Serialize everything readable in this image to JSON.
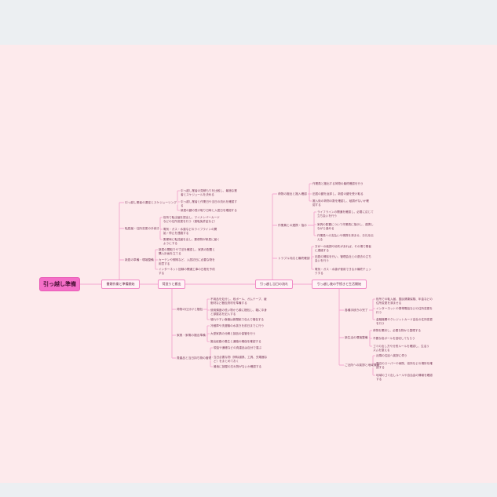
{
  "root": {
    "label": "引っ越し準備"
  },
  "colors": {
    "background": "#fdeaec",
    "root": "#f56fc8",
    "line": "#f3a6cf",
    "node_border": "#f08cc6"
  },
  "branches": [
    {
      "label": "書類作業と準備開始",
      "children": [
        {
          "label": "引っ越し業者の選定とスケジューリング",
          "leaves": [
            "引っ越し業者の見積もりを比較し、最適な業者とスケジュールを決める",
            "引っ越し業者と作業日や当日の流れを確認する",
            "新居の鍵の受け取り日時と入居日を確認する"
          ]
        },
        {
          "label": "転居届・住所変更の手続き",
          "leaves": [
            "役所で転出届を提出し、マイナンバーカードなどの住所変更を行う（運転免許証など）",
            "電気・ガス・水道などのライフラインの開始・停止を連絡する",
            "郵便局に転送届を出し、郵便物が新居に届くようにする"
          ]
        },
        {
          "label": "新居の準備・環境整備",
          "leaves": [
            "新居の間取りや寸法を確認し、家具の配置と購入計画を立てる",
            "カーテンや照明など、入居初日に必要な物を用意する",
            "インターネット回線の開通工事の日程を予約する"
          ]
        }
      ]
    },
    {
      "label": "荷造りと搬出",
      "children": [
        {
          "label": "荷物の仕分けと梱包",
          "leaves": [
            "不用品を処分し、段ボール、ガムテープ、緩衝材など梱包資材を準備する",
            "使用頻度の低い物から順に梱包し、箱に中身と部屋名を記入する",
            "壊れやすい食器は新聞紙で包んで梱包する"
          ]
        },
        {
          "label": "家具・家電の搬出準備",
          "leaves": [
            "冷蔵庫や洗濯機の水抜きを前日までに行う",
            "大型家具の分解と部品の保管を行う",
            "搬出経路の養生と通路の確保を確認する"
          ]
        },
        {
          "label": "貴重品と当日持ち物の管理",
          "leaves": [
            "現金や通帳などの貴重品は自分で運ぶ",
            "当日必要な物（掃除道具、工具、充電器など）をまとめておく",
            "最後に部屋の忘れ物がないか確認する"
          ]
        }
      ]
    },
    {
      "label": "引っ越し当日の流れ",
      "children": [
        {
          "label": "荷物の搬出と搬入確認",
          "leaves": [
            "作業員と搬出する荷物の最終確認を行う",
            "旧居の鍵を返却し、新居の鍵を受け取る",
            "搬入後の荷物の数を確認し、破損がないか確認する"
          ]
        },
        {
          "label": "作業員との連携・指示",
          "leaves": [
            "ライフラインの開通を確認し、必要に応じて立ち会いを行う",
            "家具の配置について作業員に指示し、連携しながら進める",
            "作業員への支払いや精算を済ませ、お礼を伝える"
          ]
        },
        {
          "label": "トラブル対応と最終確認",
          "leaves": [
            "万が一の破損や紛失があれば、その場で業者に連絡する",
            "旧居の掃除を行い、管理会社との退去の立ち会いを行う",
            "電気・ガス・水道が使用できるか最終チェックする"
          ]
        }
      ]
    },
    {
      "label": "引っ越し後の手続きと生活開始",
      "children": [
        {
          "label": "各種手続きの完了",
          "leaves": [
            "役所での転入届、国民健康保険、年金などの住所変更を済ませる",
            "インターネットや携帯電話などの住所変更を行う",
            "金融機関やクレジットカード会社の住所変更を行う"
          ]
        },
        {
          "label": "新生活の環境整備",
          "leaves": [
            "荷物を開封し、必要な物から整理する",
            "不要な段ボールを回収してもらう",
            "ゴミの出し方や分別ルールを確認し、生活リズムを整える"
          ]
        },
        {
          "label": "ご近所への挨拶と地域情報",
          "leaves": [
            "近隣の住民へ挨拶に伺う",
            "周辺のスーパーや病院、役所などの場所を確認する",
            "地域のゴミ出しルールや自治会の情報を確認する"
          ]
        }
      ]
    }
  ]
}
